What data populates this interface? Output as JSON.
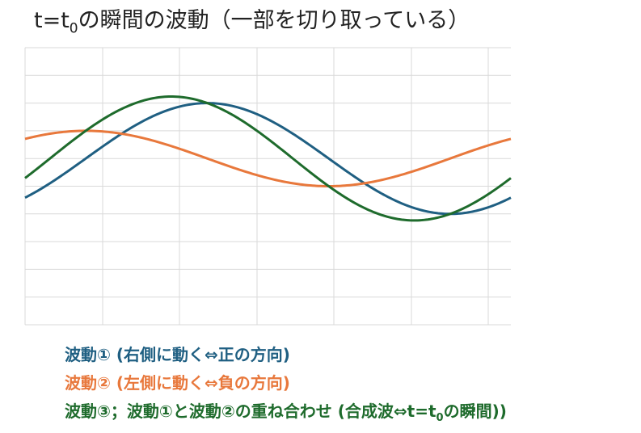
{
  "title": {
    "prefix": "t=t",
    "subscript": "0",
    "suffix": "の瞬間の波動（一部を切り取っている）"
  },
  "colors": {
    "wave1": "#1f5f82",
    "wave2": "#e8783c",
    "wave3": "#1e6b2c",
    "grid": "#d9d9d9"
  },
  "legend": {
    "wave1": "波動① (右側に動く⇔正の方向)",
    "wave2": "波動② (左側に動く⇔負の方向)",
    "wave3_prefix": "波動③；波動①と波動②の重ね合わせ (合成波⇔t=t",
    "wave3_subscript": "0",
    "wave3_suffix": "の瞬間))"
  },
  "chart_data": {
    "type": "line",
    "grid": true,
    "xlim": [
      0,
      1
    ],
    "ylim": [
      -6,
      4
    ],
    "series": [
      {
        "key": "wave1",
        "amplitude": 2,
        "phase_deg": -45,
        "periods": 1
      },
      {
        "key": "wave2",
        "amplitude": 1,
        "phase_deg": 45,
        "periods": 1
      }
    ],
    "sum": {
      "key": "wave3",
      "of": [
        "wave1",
        "wave2"
      ]
    }
  }
}
